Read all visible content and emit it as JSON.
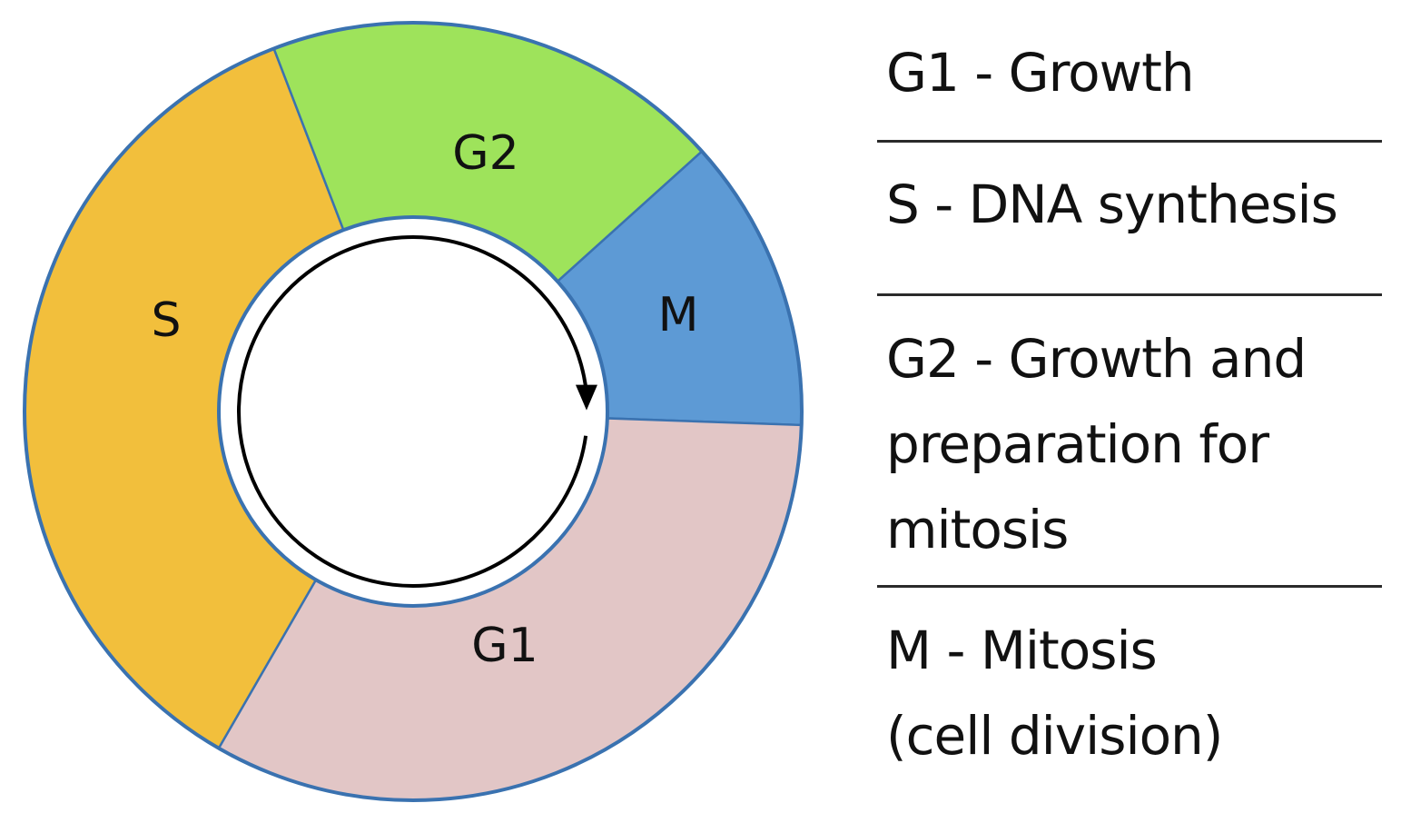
{
  "diagram": {
    "phases": [
      {
        "id": "S",
        "label": "S",
        "color": "#f2bf3c",
        "start_deg": 210,
        "end_deg": 339
      },
      {
        "id": "G2",
        "label": "G2",
        "color": "#9ee35b",
        "start_deg": 339,
        "end_deg": 48
      },
      {
        "id": "M",
        "label": "M",
        "color": "#5d9ad5",
        "start_deg": 48,
        "end_deg": 92
      },
      {
        "id": "G1",
        "label": "G1",
        "color": "#e2c6c6",
        "start_deg": 92,
        "end_deg": 210
      }
    ],
    "ring_border_color": "#3a72b0",
    "arrow_color": "#000000",
    "arrow_direction": "clockwise"
  },
  "legend": {
    "g1": {
      "lines": [
        "G1 - Growth"
      ]
    },
    "s": {
      "lines": [
        "S - DNA synthesis"
      ]
    },
    "g2": {
      "lines": [
        "G2 - Growth and",
        "preparation for",
        "mitosis"
      ]
    },
    "m": {
      "lines": [
        "M - Mitosis",
        "(cell division)"
      ]
    }
  }
}
